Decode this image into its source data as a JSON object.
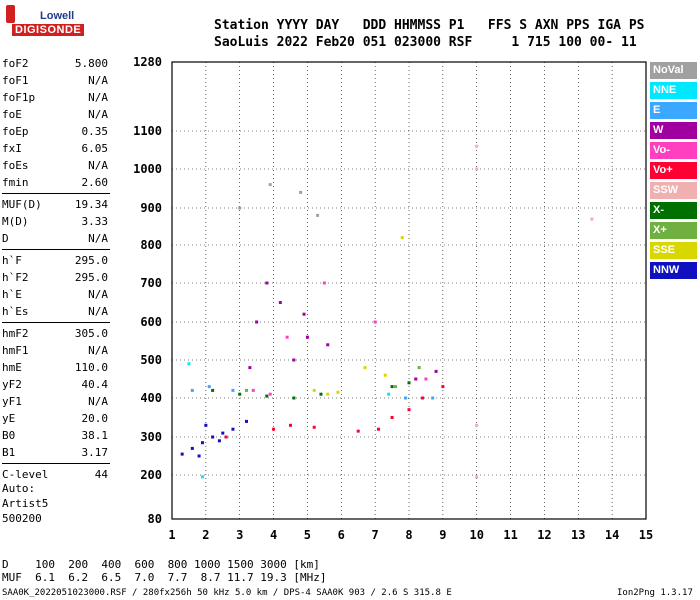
{
  "logo": {
    "top": "Lowell",
    "main": "DIGISONDE"
  },
  "header": {
    "labels_line": "Station YYYY DAY   DDD HHMMSS P1   FFS S AXN PPS IGA PS",
    "values_line": "SaoLuis 2022 Feb20 051 023000 RSF     1 715 100 00- 11"
  },
  "params": [
    {
      "name": "foF2",
      "value": "5.800"
    },
    {
      "name": "foF1",
      "value": "N/A"
    },
    {
      "name": "foF1p",
      "value": "N/A"
    },
    {
      "name": "foE",
      "value": "N/A"
    },
    {
      "name": "foEp",
      "value": "0.35"
    },
    {
      "name": "fxI",
      "value": "6.05"
    },
    {
      "name": "foEs",
      "value": "N/A"
    },
    {
      "name": "fmin",
      "value": "2.60"
    },
    {
      "name": "MUF(D)",
      "value": "19.34"
    },
    {
      "name": "M(D)",
      "value": "3.33"
    },
    {
      "name": "D",
      "value": "N/A"
    },
    {
      "name": "h`F",
      "value": "295.0"
    },
    {
      "name": "h`F2",
      "value": "295.0"
    },
    {
      "name": "h`E",
      "value": "N/A"
    },
    {
      "name": "h`Es",
      "value": "N/A"
    },
    {
      "name": "hmF2",
      "value": "305.0"
    },
    {
      "name": "hmF1",
      "value": "N/A"
    },
    {
      "name": "hmE",
      "value": "110.0"
    },
    {
      "name": "yF2",
      "value": "40.4"
    },
    {
      "name": "yF1",
      "value": "N/A"
    },
    {
      "name": "yE",
      "value": "20.0"
    },
    {
      "name": "B0",
      "value": "38.1"
    },
    {
      "name": "B1",
      "value": "3.17"
    },
    {
      "name": "C-level",
      "value": "44"
    }
  ],
  "autoscale": {
    "line1": "Auto:",
    "line2": "Artist5",
    "line3": "500200"
  },
  "legend": [
    {
      "label": "NoVal",
      "color": "#a0a0a0"
    },
    {
      "label": "NNE",
      "color": "#00e8ff"
    },
    {
      "label": "E",
      "color": "#3aa8ff"
    },
    {
      "label": "W",
      "color": "#a000a0"
    },
    {
      "label": "Vo-",
      "color": "#ff3fbf"
    },
    {
      "label": "Vo+",
      "color": "#ff0033"
    },
    {
      "label": "SSW",
      "color": "#f0b0b0"
    },
    {
      "label": "X-",
      "color": "#007000"
    },
    {
      "label": "X+",
      "color": "#6fb040"
    },
    {
      "label": "SSE",
      "color": "#d8d800"
    },
    {
      "label": "NNW",
      "color": "#1010c0"
    }
  ],
  "bottom": {
    "d_line": "D    100  200  400  600  800 1000 1500 3000 [km]",
    "muf_line": "MUF  6.1  6.2  6.5  7.0  7.7  8.7 11.7 19.3 [MHz]"
  },
  "footer": {
    "left": "SAA0K_2022051023000.RSF / 280fx256h 50 kHz 5.0 km / DPS-4 SAA0K 903 / 2.6 S 315.8 E",
    "right": "Ion2Png 1.3.17"
  },
  "chart_data": {
    "type": "scatter",
    "title": "",
    "xlabel": "",
    "ylabel": "",
    "xlim": [
      1,
      15
    ],
    "ylim": [
      80,
      1280
    ],
    "x_ticks": [
      "1",
      "2",
      "3",
      "4",
      "5",
      "6",
      "7",
      "8",
      "9",
      "10",
      "11",
      "12",
      "13",
      "14",
      "15"
    ],
    "y_ticks": [
      "80",
      "200",
      "300",
      "400",
      "500",
      "600",
      "700",
      "800",
      "900",
      "1000",
      "1100",
      "1280"
    ],
    "grid": true,
    "series": [
      {
        "name": "NNW",
        "color": "#1010c0",
        "points": [
          [
            1.3,
            255
          ],
          [
            1.6,
            270
          ],
          [
            1.9,
            285
          ],
          [
            2.2,
            300
          ],
          [
            2.5,
            310
          ],
          [
            2.0,
            330
          ],
          [
            2.8,
            320
          ],
          [
            3.2,
            340
          ],
          [
            1.8,
            250
          ],
          [
            2.4,
            290
          ]
        ]
      },
      {
        "name": "W",
        "color": "#a000a0",
        "points": [
          [
            3.5,
            600
          ],
          [
            3.8,
            700
          ],
          [
            4.2,
            650
          ],
          [
            4.6,
            500
          ],
          [
            5.0,
            560
          ],
          [
            3.3,
            480
          ],
          [
            4.9,
            620
          ],
          [
            5.6,
            540
          ],
          [
            8.2,
            450
          ],
          [
            8.8,
            470
          ]
        ]
      },
      {
        "name": "Vo+",
        "color": "#ff0033",
        "points": [
          [
            4.0,
            320
          ],
          [
            4.5,
            330
          ],
          [
            5.2,
            325
          ],
          [
            6.5,
            315
          ],
          [
            7.1,
            320
          ],
          [
            7.5,
            350
          ],
          [
            8.0,
            370
          ],
          [
            8.4,
            400
          ],
          [
            9.0,
            430
          ],
          [
            2.6,
            300
          ]
        ]
      },
      {
        "name": "Vo-",
        "color": "#ff3fbf",
        "points": [
          [
            3.4,
            420
          ],
          [
            3.9,
            410
          ],
          [
            4.4,
            560
          ],
          [
            5.5,
            700
          ],
          [
            7.0,
            600
          ],
          [
            8.5,
            450
          ]
        ]
      },
      {
        "name": "X-",
        "color": "#007000",
        "points": [
          [
            2.2,
            420
          ],
          [
            3.0,
            410
          ],
          [
            3.8,
            405
          ],
          [
            4.6,
            400
          ],
          [
            5.4,
            410
          ],
          [
            7.5,
            430
          ],
          [
            8.0,
            440
          ]
        ]
      },
      {
        "name": "SSE",
        "color": "#d8d800",
        "points": [
          [
            5.2,
            420
          ],
          [
            5.6,
            410
          ],
          [
            5.9,
            415
          ],
          [
            6.7,
            480
          ],
          [
            7.3,
            460
          ],
          [
            7.8,
            820
          ]
        ]
      },
      {
        "name": "E",
        "color": "#3aa8ff",
        "points": [
          [
            1.6,
            420
          ],
          [
            2.1,
            430
          ],
          [
            2.8,
            420
          ],
          [
            7.9,
            400
          ],
          [
            8.7,
            400
          ]
        ]
      },
      {
        "name": "NNE",
        "color": "#00e8ff",
        "points": [
          [
            1.5,
            490
          ],
          [
            1.9,
            195
          ],
          [
            7.4,
            410
          ]
        ]
      },
      {
        "name": "X+",
        "color": "#6fb040",
        "points": [
          [
            3.2,
            420
          ],
          [
            7.6,
            430
          ],
          [
            8.3,
            480
          ]
        ]
      },
      {
        "name": "SSW",
        "color": "#f0b0b0",
        "points": [
          [
            10.0,
            1060
          ],
          [
            10.0,
            1000
          ],
          [
            10.0,
            330
          ],
          [
            10.0,
            195
          ],
          [
            13.4,
            870
          ]
        ]
      },
      {
        "name": "NoVal",
        "color": "#a0a0a0",
        "points": [
          [
            3.0,
            900
          ],
          [
            3.9,
            960
          ],
          [
            4.8,
            940
          ],
          [
            5.3,
            880
          ]
        ]
      }
    ]
  }
}
